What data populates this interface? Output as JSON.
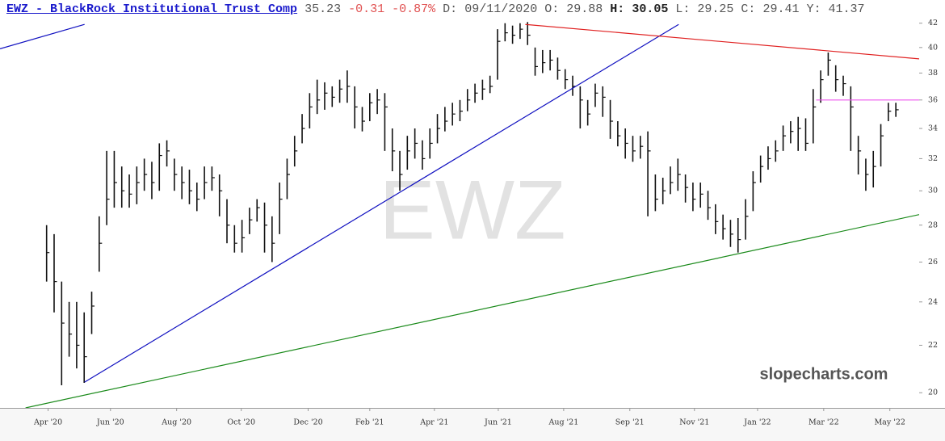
{
  "header": {
    "title": "EWZ - BlackRock Institutional Trust Comp",
    "last": "35.23",
    "change": "-0.31",
    "change_pct": "-0.87%",
    "items": [
      {
        "label": "D:",
        "value": "09/11/2020"
      },
      {
        "label": "O:",
        "value": "29.88"
      },
      {
        "label": "H:",
        "value": "30.05"
      },
      {
        "label": "L:",
        "value": "29.25"
      },
      {
        "label": "C:",
        "value": "29.41"
      },
      {
        "label": "Y:",
        "value": "41.37"
      }
    ]
  },
  "chart_data": {
    "type": "ohlc",
    "watermark": "EWZ",
    "credit": "slopecharts.com",
    "color": "#111111",
    "log_scale": true,
    "ylim": [
      19.4,
      42.6
    ],
    "yticks": [
      20,
      22,
      24,
      26,
      28,
      30,
      32,
      34,
      36,
      38,
      40,
      42
    ],
    "xlim": [
      -6.2,
      116.1
    ],
    "xticks": [
      {
        "value": 0.2,
        "label": "Apr '20"
      },
      {
        "value": 8.5,
        "label": "Jun '20"
      },
      {
        "value": 17.3,
        "label": "Aug '20"
      },
      {
        "value": 25.9,
        "label": "Oct '20"
      },
      {
        "value": 34.8,
        "label": "Dec '20"
      },
      {
        "value": 43,
        "label": "Feb '21"
      },
      {
        "value": 51.6,
        "label": "Apr '21"
      },
      {
        "value": 60.1,
        "label": "Jun '21"
      },
      {
        "value": 68.8,
        "label": "Aug '21"
      },
      {
        "value": 77.6,
        "label": "Sep '21"
      },
      {
        "value": 86.2,
        "label": "Nov '21"
      },
      {
        "value": 94.6,
        "label": "Jan '22"
      },
      {
        "value": 103.4,
        "label": "Mar '22"
      },
      {
        "value": 112.2,
        "label": "May '22"
      }
    ],
    "high": [
      28,
      27.5,
      25,
      24,
      24,
      23.5,
      24.5,
      28.5,
      32.5,
      32.5,
      31.5,
      31,
      31.5,
      32,
      31.8,
      33,
      33.2,
      32,
      31.5,
      31.3,
      30.5,
      31.5,
      31.5,
      31,
      29.5,
      28,
      28.3,
      29,
      29.5,
      29.3,
      28.5,
      30.5,
      32,
      33.5,
      35,
      36.5,
      37.5,
      37.3,
      37,
      37.5,
      38.2,
      37,
      35.5,
      36.5,
      36.8,
      36.5,
      34,
      32.5,
      33.5,
      34,
      33.2,
      34,
      35,
      35.5,
      35.8,
      36,
      36.8,
      37.2,
      37.5,
      37.8,
      41.5,
      42,
      41.8,
      42,
      42.1,
      40,
      39.8,
      39.8,
      39.2,
      38.3,
      37.8,
      37,
      36,
      37.2,
      37,
      36,
      34.5,
      34,
      33.5,
      33.5,
      33.8,
      31,
      30.8,
      31.5,
      32,
      31,
      30.5,
      30.5,
      30,
      29.2,
      28.6,
      28.3,
      28.4,
      29.5,
      31.2,
      32.2,
      32.8,
      33.2,
      34.2,
      34.5,
      34.8,
      34.7,
      36.8,
      38.2,
      39.6,
      38.6,
      37.8,
      37,
      33.5,
      32,
      32.5,
      34.3,
      35.8,
      35.8
    ],
    "low": [
      25,
      23.5,
      20.3,
      21.5,
      21,
      20.4,
      22.5,
      25.5,
      28,
      29,
      29,
      29,
      29.2,
      30,
      29.5,
      30,
      31.5,
      30,
      29.5,
      29.2,
      28.8,
      29.5,
      30,
      28.5,
      27,
      26.5,
      26.5,
      27.5,
      28.2,
      26.5,
      26,
      27.5,
      29.5,
      31.5,
      33,
      34,
      35,
      35.3,
      35.5,
      35.8,
      35.8,
      34,
      33.8,
      34.5,
      35,
      32.5,
      31.2,
      30,
      31.3,
      32,
      31.3,
      32,
      33,
      33.8,
      34.2,
      34.5,
      35.2,
      35.8,
      36,
      36.5,
      37.5,
      40.5,
      40.3,
      40.7,
      40.2,
      37.8,
      38,
      38.2,
      37.5,
      36.8,
      36.3,
      34,
      34.2,
      35.5,
      34.8,
      33.3,
      32.8,
      32,
      31.8,
      32,
      28.5,
      28.8,
      29.2,
      29.8,
      30,
      29.3,
      28.8,
      29,
      28.3,
      27.5,
      27.2,
      26.8,
      26.5,
      27.2,
      28.8,
      30.5,
      31.3,
      31.8,
      32.5,
      33,
      32.5,
      32.5,
      33,
      35.8,
      37.8,
      36.6,
      36.3,
      32.5,
      31,
      30,
      30.2,
      31.5,
      34.5,
      34.8
    ],
    "close": [
      26.5,
      25,
      23,
      22.5,
      22,
      21.5,
      23.8,
      27,
      29.5,
      30.5,
      30,
      29.8,
      30.5,
      31,
      30.5,
      32.2,
      32.5,
      31,
      30.5,
      30,
      29.5,
      30.5,
      30.8,
      30,
      28,
      27,
      27.3,
      28.3,
      29,
      28,
      27,
      29.5,
      31,
      32.5,
      34,
      35.5,
      36,
      36.5,
      36.2,
      36.8,
      37,
      35.5,
      34.5,
      35.8,
      36,
      35.5,
      32.5,
      31,
      32.5,
      33,
      32,
      33,
      34,
      34.5,
      35,
      35.2,
      36,
      36.5,
      36.8,
      37,
      40.5,
      41.2,
      41,
      41.5,
      41,
      38.5,
      38.8,
      39,
      38.2,
      37.5,
      37,
      36,
      35,
      36.5,
      36.2,
      34.5,
      33.5,
      33,
      32.5,
      32.8,
      32.5,
      29.5,
      30,
      30.5,
      31,
      30.2,
      29.5,
      29.8,
      29,
      28.2,
      27.8,
      27.5,
      27.2,
      28.5,
      30.5,
      31.5,
      32,
      32.5,
      33.5,
      33.8,
      34,
      33,
      35.5,
      37.5,
      39,
      37.5,
      37.2,
      35.5,
      32.5,
      31,
      31.5,
      33.5,
      35.2,
      35.3
    ],
    "trendlines": [
      {
        "color": "#1010c0",
        "points": [
          [
            -6.2,
            39.9
          ],
          [
            5.05,
            41.9
          ]
        ]
      },
      {
        "color": "#1010c0",
        "points": [
          [
            5.05,
            20.43
          ],
          [
            84.1,
            41.9
          ]
        ]
      },
      {
        "color": "#e02020",
        "points": [
          [
            63.7,
            41.9
          ],
          [
            116.1,
            39.1
          ]
        ]
      },
      {
        "color": "#1a8a1a",
        "points": [
          [
            -2.8,
            19.4
          ],
          [
            116.1,
            28.6
          ]
        ]
      },
      {
        "color": "#ee55ee",
        "points": [
          [
            102.4,
            36
          ],
          [
            116.1,
            36
          ]
        ]
      }
    ]
  }
}
